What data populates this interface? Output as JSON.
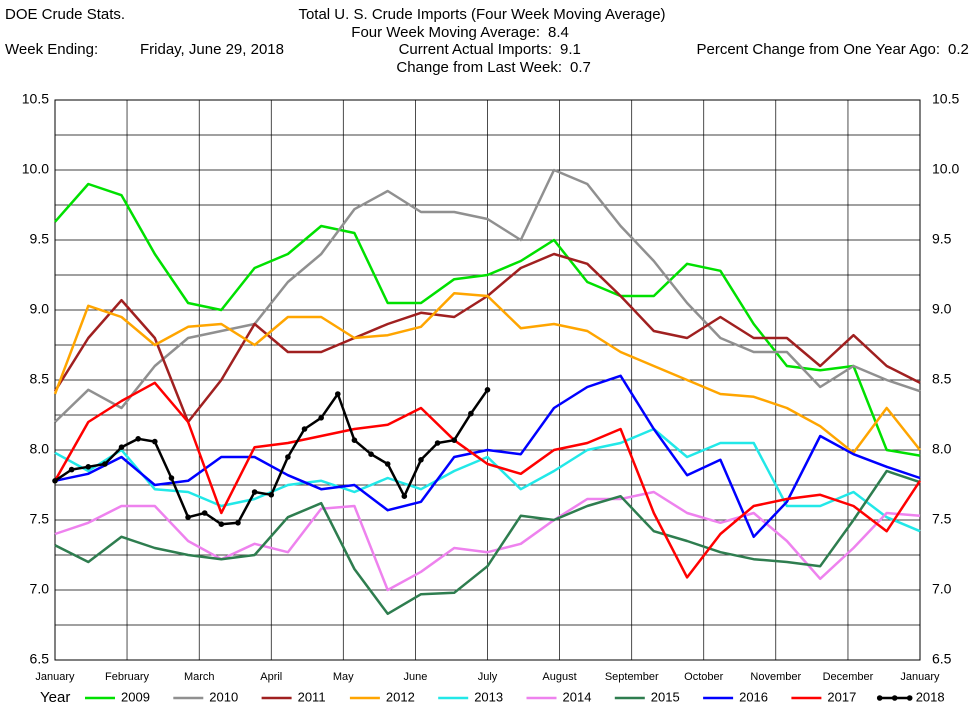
{
  "chart_data": {
    "type": "line",
    "source": "DOE Crude Stats.",
    "title": "Total U. S. Crude Imports (Four Week Moving Average)",
    "week_ending_label": "Week Ending:",
    "week_ending": "Friday, June 29, 2018",
    "stats": [
      {
        "label": "Four Week Moving Average:",
        "value": 8.4
      },
      {
        "label": "Current Actual Imports:",
        "value": 9.1
      },
      {
        "label": "Percent Change from One Year Ago:",
        "value": 0.2
      },
      {
        "label": "Change from Last Week:",
        "value": 0.7
      }
    ],
    "legend_title": "Year",
    "x": [
      0,
      2,
      4,
      6,
      8,
      10,
      12,
      14,
      16,
      18,
      20,
      22,
      24,
      26,
      28,
      30,
      32,
      34,
      36,
      38,
      40,
      42,
      44,
      46,
      48,
      50,
      52
    ],
    "xlim": [
      0,
      52
    ],
    "xticks": [
      {
        "value": 0,
        "label": "January"
      },
      {
        "value": 4.33,
        "label": "February"
      },
      {
        "value": 8.67,
        "label": "March"
      },
      {
        "value": 13,
        "label": "April"
      },
      {
        "value": 17.33,
        "label": "May"
      },
      {
        "value": 21.67,
        "label": "June"
      },
      {
        "value": 26,
        "label": "July"
      },
      {
        "value": 30.33,
        "label": "August"
      },
      {
        "value": 34.67,
        "label": "September"
      },
      {
        "value": 39,
        "label": "October"
      },
      {
        "value": 43.33,
        "label": "November"
      },
      {
        "value": 47.67,
        "label": "December"
      },
      {
        "value": 52,
        "label": "January"
      }
    ],
    "ylim": [
      6.5,
      10.5
    ],
    "yticks": [
      6.5,
      {
        "value": 7,
        "label": "7.0"
      },
      7.5,
      {
        "value": 8,
        "label": "8.0"
      },
      8.5,
      {
        "value": 9,
        "label": "9.0"
      },
      9.5,
      {
        "value": 10,
        "label": "10.0"
      },
      10.5
    ],
    "ygrid": [
      6.75,
      7.25,
      7.75,
      8.25,
      8.75,
      9.25,
      9.75,
      10.25
    ],
    "grid": true,
    "series": [
      {
        "name": "2009",
        "color": "#00e000",
        "values": [
          9.63,
          9.9,
          9.82,
          9.4,
          9.05,
          9.0,
          9.3,
          9.4,
          9.6,
          9.55,
          9.05,
          9.05,
          9.22,
          9.25,
          9.35,
          9.5,
          9.2,
          9.1,
          9.1,
          9.33,
          9.28,
          8.9,
          8.6,
          8.57,
          8.6,
          8.0,
          7.96
        ]
      },
      {
        "name": "2010",
        "color": "#909090",
        "values": [
          8.2,
          8.43,
          8.3,
          8.6,
          8.8,
          8.85,
          8.9,
          9.2,
          9.4,
          9.72,
          9.85,
          9.7,
          9.7,
          9.65,
          9.5,
          10.0,
          9.9,
          9.6,
          9.35,
          9.05,
          8.8,
          8.7,
          8.7,
          8.45,
          8.6,
          8.5,
          8.42
        ]
      },
      {
        "name": "2011",
        "color": "#a02020",
        "values": [
          8.42,
          8.8,
          9.07,
          8.8,
          8.2,
          8.5,
          8.9,
          8.7,
          8.7,
          8.8,
          8.9,
          8.98,
          8.95,
          9.1,
          9.3,
          9.4,
          9.33,
          9.1,
          8.85,
          8.8,
          8.95,
          8.8,
          8.8,
          8.6,
          8.82,
          8.6,
          8.48
        ]
      },
      {
        "name": "2012",
        "color": "#ffa500",
        "values": [
          8.4,
          9.03,
          8.95,
          8.75,
          8.88,
          8.9,
          8.75,
          8.95,
          8.95,
          8.8,
          8.82,
          8.88,
          9.12,
          9.1,
          8.87,
          8.9,
          8.85,
          8.7,
          8.6,
          8.5,
          8.4,
          8.38,
          8.3,
          8.17,
          7.98,
          8.3,
          8.0
        ]
      },
      {
        "name": "2013",
        "color": "#22e8e8",
        "values": [
          7.98,
          7.85,
          8.0,
          7.72,
          7.7,
          7.6,
          7.65,
          7.75,
          7.78,
          7.7,
          7.8,
          7.72,
          7.85,
          7.95,
          7.72,
          7.85,
          8.0,
          8.05,
          8.15,
          7.95,
          8.05,
          8.05,
          7.6,
          7.6,
          7.7,
          7.52,
          7.42
        ]
      },
      {
        "name": "2014",
        "color": "#ee82ee",
        "values": [
          7.4,
          7.48,
          7.6,
          7.6,
          7.35,
          7.22,
          7.33,
          7.27,
          7.58,
          7.6,
          7.0,
          7.13,
          7.3,
          7.27,
          7.33,
          7.5,
          7.65,
          7.65,
          7.7,
          7.55,
          7.48,
          7.55,
          7.35,
          7.08,
          7.3,
          7.55,
          7.53
        ]
      },
      {
        "name": "2015",
        "color": "#2e7d4f",
        "values": [
          7.32,
          7.2,
          7.38,
          7.3,
          7.25,
          7.22,
          7.25,
          7.52,
          7.62,
          7.15,
          6.83,
          6.97,
          6.98,
          7.17,
          7.53,
          7.5,
          7.6,
          7.67,
          7.42,
          7.35,
          7.27,
          7.22,
          7.2,
          7.17,
          7.5,
          7.85,
          7.77
        ]
      },
      {
        "name": "2016",
        "color": "#0000ff",
        "values": [
          7.78,
          7.83,
          7.95,
          7.75,
          7.78,
          7.95,
          7.95,
          7.82,
          7.72,
          7.75,
          7.57,
          7.63,
          7.95,
          8.0,
          7.97,
          8.3,
          8.45,
          8.53,
          8.15,
          7.82,
          7.93,
          7.38,
          7.63,
          8.1,
          7.97,
          7.88,
          7.8
        ]
      },
      {
        "name": "2017",
        "color": "#ff0000",
        "values": [
          7.78,
          8.2,
          8.35,
          8.48,
          8.2,
          7.55,
          8.02,
          8.05,
          8.1,
          8.15,
          8.18,
          8.3,
          8.07,
          7.9,
          7.83,
          8.0,
          8.05,
          8.15,
          7.55,
          7.09,
          7.4,
          7.6,
          7.65,
          7.68,
          7.6,
          7.42,
          7.78
        ]
      },
      {
        "name": "2018",
        "color": "#000000",
        "markers": true,
        "x": [
          0,
          1,
          2,
          3,
          4,
          5,
          6,
          7,
          8,
          9,
          10,
          11,
          12,
          13,
          14,
          15,
          16,
          17,
          18,
          19,
          20,
          21,
          22,
          23,
          24,
          25,
          26
        ],
        "values": [
          7.78,
          7.86,
          7.88,
          7.9,
          8.02,
          8.08,
          8.06,
          7.8,
          7.52,
          7.55,
          7.47,
          7.48,
          7.7,
          7.68,
          7.95,
          8.15,
          8.23,
          8.4,
          8.07,
          7.97,
          7.9,
          7.67,
          7.93,
          8.05,
          8.07,
          8.26,
          8.43
        ]
      }
    ]
  }
}
